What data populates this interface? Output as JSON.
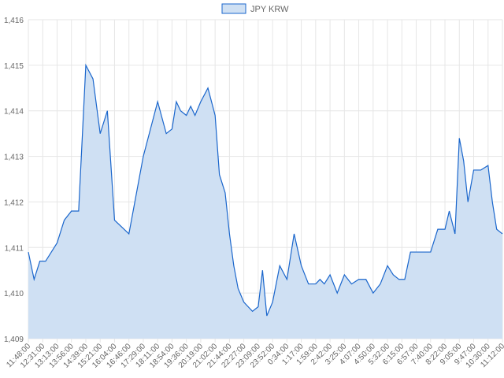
{
  "chart_data": {
    "type": "area",
    "colors": {
      "line": "#1a66cc",
      "fill": "#cfe0f3",
      "grid": "#e6e6e6",
      "text": "#666666"
    },
    "legend": {
      "label": "JPY KRW",
      "placement": "top-center"
    },
    "grid": true,
    "ylim": [
      1409,
      1416
    ],
    "y_ticks": [
      1409,
      1410,
      1411,
      1412,
      1413,
      1414,
      1415,
      1416
    ],
    "y_tick_labels": [
      "1,409",
      "1,410",
      "1,411",
      "1,412",
      "1,413",
      "1,414",
      "1,415",
      "1,416"
    ],
    "x_tick_labels": [
      "11:48:00",
      "12:31:00",
      "13:13:00",
      "13:56:00",
      "14:39:00",
      "15:21:00",
      "16:04:00",
      "16:46:00",
      "17:29:00",
      "18:11:00",
      "18:54:00",
      "19:36:00",
      "20:19:00",
      "21:02:00",
      "21:44:00",
      "22:27:00",
      "23:09:00",
      "23:52:00",
      "0:34:00",
      "1:17:00",
      "1:59:00",
      "2:42:00",
      "3:25:00",
      "4:07:00",
      "4:50:00",
      "5:32:00",
      "6:15:00",
      "6:57:00",
      "7:40:00",
      "8:22:00",
      "9:05:00",
      "9:47:00",
      "10:30:00",
      "11:12:00"
    ],
    "series": [
      {
        "name": "JPY KRW",
        "x": [
          0,
          0.4,
          0.8,
          1.2,
          1.6,
          2,
          2.5,
          3,
          3.5,
          4,
          4.5,
          5,
          5.5,
          6,
          7,
          8,
          9,
          9.6,
          10,
          10.3,
          10.6,
          11,
          11.3,
          11.6,
          12,
          12.5,
          13,
          13.3,
          13.7,
          14,
          14.3,
          14.6,
          15,
          15.3,
          15.6,
          16,
          16.3,
          16.6,
          17,
          17.5,
          18,
          18.5,
          19,
          19.5,
          20,
          20.3,
          20.6,
          21,
          21.5,
          22,
          22.5,
          23,
          23.5,
          24,
          24.5,
          25,
          25.4,
          25.8,
          26.2,
          26.6,
          27,
          27.5,
          28,
          28.5,
          29,
          29.3,
          29.7,
          30,
          30.3,
          30.6,
          31,
          31.5,
          32,
          32.3,
          32.6,
          33
        ],
        "values": [
          1410.9,
          1410.3,
          1410.7,
          1410.7,
          1410.9,
          1411.1,
          1411.6,
          1411.8,
          1411.8,
          1415.0,
          1414.7,
          1413.5,
          1414.0,
          1411.6,
          1411.3,
          1413.0,
          1414.2,
          1413.5,
          1413.6,
          1414.2,
          1414.0,
          1413.9,
          1414.1,
          1413.9,
          1414.2,
          1414.5,
          1413.9,
          1412.6,
          1412.2,
          1411.3,
          1410.6,
          1410.1,
          1409.8,
          1409.7,
          1409.6,
          1409.7,
          1410.5,
          1409.5,
          1409.8,
          1410.6,
          1410.3,
          1411.3,
          1410.6,
          1410.2,
          1410.2,
          1410.3,
          1410.2,
          1410.4,
          1410.0,
          1410.4,
          1410.2,
          1410.3,
          1410.3,
          1410.0,
          1410.2,
          1410.6,
          1410.4,
          1410.3,
          1410.3,
          1410.9,
          1410.9,
          1410.9,
          1410.9,
          1411.4,
          1411.4,
          1411.8,
          1411.3,
          1413.4,
          1412.9,
          1412.0,
          1412.7,
          1412.7,
          1412.8,
          1412.0,
          1411.4,
          1411.3
        ]
      }
    ]
  }
}
